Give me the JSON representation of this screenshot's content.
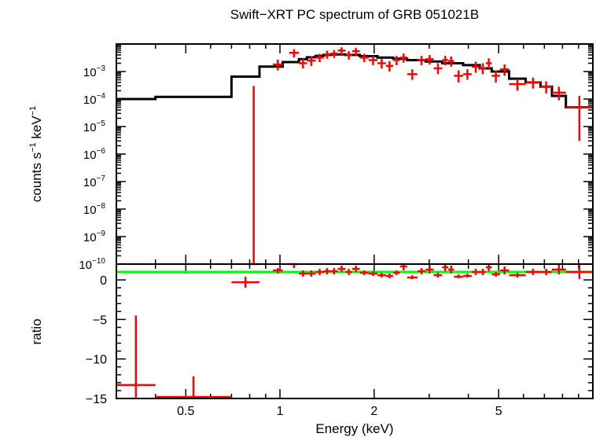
{
  "title": "Swift−XRT PC spectrum of GRB 051021B",
  "colors": {
    "data": "#ff0000",
    "model": "#000000",
    "unity": "#00ff00",
    "axes": "#000000"
  },
  "chart_data": [
    {
      "type": "scatter",
      "xscale": "log",
      "yscale": "log",
      "xlim": [
        0.3,
        10
      ],
      "ylim": [
        1e-10,
        0.01
      ],
      "ylabel_main": "counts s",
      "ylabel_sup1": "−1",
      "ylabel_mid": " keV",
      "ylabel_sup2": "−1",
      "yticks": [
        {
          "value": 1e-10,
          "base": "10",
          "exp": "−10"
        },
        {
          "value": 1e-09,
          "base": "10",
          "exp": "−9"
        },
        {
          "value": 1e-08,
          "base": "10",
          "exp": "−8"
        },
        {
          "value": 1e-07,
          "base": "10",
          "exp": "−7"
        },
        {
          "value": 1e-06,
          "base": "10",
          "exp": "−6"
        },
        {
          "value": 1e-05,
          "base": "10",
          "exp": "−5"
        },
        {
          "value": 0.0001,
          "base": "10",
          "exp": "−4"
        },
        {
          "value": 0.001,
          "base": "10",
          "exp": "−3"
        }
      ],
      "series": [
        {
          "kind": "data",
          "points": [
            {
              "x0": 0.79,
              "x1": 0.86,
              "y": 1e-10,
              "ylo": 1e-10,
              "yhi": 0.0003
            },
            {
              "x0": 0.95,
              "x1": 1.02,
              "y": 0.0018,
              "ylo": 0.0011,
              "yhi": 0.0027
            },
            {
              "x0": 1.07,
              "x1": 1.15,
              "y": 0.0048,
              "ylo": 0.0032,
              "yhi": 0.0065
            },
            {
              "x0": 1.15,
              "x1": 1.22,
              "y": 0.002,
              "ylo": 0.0013,
              "yhi": 0.003
            },
            {
              "x0": 1.22,
              "x1": 1.3,
              "y": 0.0025,
              "ylo": 0.0016,
              "yhi": 0.0036
            },
            {
              "x0": 1.3,
              "x1": 1.38,
              "y": 0.0032,
              "ylo": 0.0022,
              "yhi": 0.0044
            },
            {
              "x0": 1.38,
              "x1": 1.45,
              "y": 0.0042,
              "ylo": 0.0029,
              "yhi": 0.0057
            },
            {
              "x0": 1.45,
              "x1": 1.53,
              "y": 0.0045,
              "ylo": 0.0031,
              "yhi": 0.006
            },
            {
              "x0": 1.53,
              "x1": 1.62,
              "y": 0.0058,
              "ylo": 0.004,
              "yhi": 0.0076
            },
            {
              "x0": 1.62,
              "x1": 1.7,
              "y": 0.004,
              "ylo": 0.0027,
              "yhi": 0.0055
            },
            {
              "x0": 1.7,
              "x1": 1.8,
              "y": 0.0055,
              "ylo": 0.0038,
              "yhi": 0.0073
            },
            {
              "x0": 1.8,
              "x1": 1.92,
              "y": 0.0032,
              "ylo": 0.0022,
              "yhi": 0.0044
            },
            {
              "x0": 1.92,
              "x1": 2.05,
              "y": 0.0026,
              "ylo": 0.0017,
              "yhi": 0.0037
            },
            {
              "x0": 2.05,
              "x1": 2.18,
              "y": 0.002,
              "ylo": 0.0013,
              "yhi": 0.0029
            },
            {
              "x0": 2.18,
              "x1": 2.3,
              "y": 0.0016,
              "ylo": 0.001,
              "yhi": 0.0024
            },
            {
              "x0": 2.3,
              "x1": 2.42,
              "y": 0.0026,
              "ylo": 0.0017,
              "yhi": 0.0037
            },
            {
              "x0": 2.42,
              "x1": 2.55,
              "y": 0.0032,
              "ylo": 0.0021,
              "yhi": 0.0045
            },
            {
              "x0": 2.55,
              "x1": 2.75,
              "y": 0.0008,
              "ylo": 0.0005,
              "yhi": 0.0012
            },
            {
              "x0": 2.75,
              "x1": 2.92,
              "y": 0.0026,
              "ylo": 0.0017,
              "yhi": 0.0037
            },
            {
              "x0": 2.92,
              "x1": 3.1,
              "y": 0.0028,
              "ylo": 0.0018,
              "yhi": 0.004
            },
            {
              "x0": 3.1,
              "x1": 3.3,
              "y": 0.0013,
              "ylo": 0.0008,
              "yhi": 0.002
            },
            {
              "x0": 3.3,
              "x1": 3.45,
              "y": 0.0026,
              "ylo": 0.0017,
              "yhi": 0.0037
            },
            {
              "x0": 3.45,
              "x1": 3.6,
              "y": 0.0024,
              "ylo": 0.0015,
              "yhi": 0.0035
            },
            {
              "x0": 3.6,
              "x1": 3.85,
              "y": 0.0007,
              "ylo": 0.0004,
              "yhi": 0.0011
            },
            {
              "x0": 3.85,
              "x1": 4.1,
              "y": 0.0008,
              "ylo": 0.0005,
              "yhi": 0.0012
            },
            {
              "x0": 4.1,
              "x1": 4.35,
              "y": 0.0015,
              "ylo": 0.0009,
              "yhi": 0.0023
            },
            {
              "x0": 4.35,
              "x1": 4.55,
              "y": 0.0013,
              "ylo": 0.0008,
              "yhi": 0.002
            },
            {
              "x0": 4.55,
              "x1": 4.75,
              "y": 0.002,
              "ylo": 0.0013,
              "yhi": 0.003
            },
            {
              "x0": 4.75,
              "x1": 5.05,
              "y": 0.0007,
              "ylo": 0.0004,
              "yhi": 0.0011
            },
            {
              "x0": 5.05,
              "x1": 5.4,
              "y": 0.0012,
              "ylo": 0.0007,
              "yhi": 0.0018
            },
            {
              "x0": 5.4,
              "x1": 6.1,
              "y": 0.00035,
              "ylo": 0.0002,
              "yhi": 0.00055
            },
            {
              "x0": 6.1,
              "x1": 6.8,
              "y": 0.0004,
              "ylo": 0.00024,
              "yhi": 0.0006
            },
            {
              "x0": 6.8,
              "x1": 7.4,
              "y": 0.00028,
              "ylo": 0.00016,
              "yhi": 0.00044
            },
            {
              "x0": 7.4,
              "x1": 8.2,
              "y": 0.00017,
              "ylo": 9e-05,
              "yhi": 0.00028
            },
            {
              "x0": 8.2,
              "x1": 10.0,
              "y": 5e-05,
              "ylo": 3e-06,
              "yhi": 0.00013
            }
          ]
        },
        {
          "kind": "model",
          "steps": [
            {
              "x0": 0.3,
              "x1": 0.4,
              "y": 0.0001
            },
            {
              "x0": 0.4,
              "x1": 0.7,
              "y": 0.00012
            },
            {
              "x0": 0.7,
              "x1": 0.86,
              "y": 0.00065
            },
            {
              "x0": 0.86,
              "x1": 1.02,
              "y": 0.0015
            },
            {
              "x0": 1.02,
              "x1": 1.15,
              "y": 0.0022
            },
            {
              "x0": 1.15,
              "x1": 1.22,
              "y": 0.0028
            },
            {
              "x0": 1.22,
              "x1": 1.3,
              "y": 0.0033
            },
            {
              "x0": 1.3,
              "x1": 1.38,
              "y": 0.0037
            },
            {
              "x0": 1.38,
              "x1": 1.45,
              "y": 0.004
            },
            {
              "x0": 1.45,
              "x1": 1.62,
              "y": 0.0042
            },
            {
              "x0": 1.62,
              "x1": 1.8,
              "y": 0.004
            },
            {
              "x0": 1.8,
              "x1": 2.05,
              "y": 0.0036
            },
            {
              "x0": 2.05,
              "x1": 2.3,
              "y": 0.0032
            },
            {
              "x0": 2.3,
              "x1": 2.55,
              "y": 0.0029
            },
            {
              "x0": 2.55,
              "x1": 2.92,
              "y": 0.0026
            },
            {
              "x0": 2.92,
              "x1": 3.3,
              "y": 0.0023
            },
            {
              "x0": 3.3,
              "x1": 3.85,
              "y": 0.002
            },
            {
              "x0": 3.85,
              "x1": 4.35,
              "y": 0.0017
            },
            {
              "x0": 4.35,
              "x1": 4.75,
              "y": 0.0013
            },
            {
              "x0": 4.75,
              "x1": 5.4,
              "y": 0.001
            },
            {
              "x0": 5.4,
              "x1": 6.1,
              "y": 0.00055
            },
            {
              "x0": 6.1,
              "x1": 6.8,
              "y": 0.0004
            },
            {
              "x0": 6.8,
              "x1": 7.4,
              "y": 0.00028
            },
            {
              "x0": 7.4,
              "x1": 8.2,
              "y": 0.00013
            },
            {
              "x0": 8.2,
              "x1": 10.0,
              "y": 5e-05
            }
          ]
        }
      ]
    },
    {
      "type": "scatter",
      "xscale": "log",
      "xlim": [
        0.3,
        10
      ],
      "ylim": [
        -15,
        2
      ],
      "ylabel": "ratio",
      "xlabel": "Energy (keV)",
      "yticks": [
        {
          "value": 0,
          "label": "0"
        },
        {
          "value": -5,
          "label": "−5"
        },
        {
          "value": -10,
          "label": "−10"
        },
        {
          "value": -15,
          "label": "−15"
        }
      ],
      "xticks": [
        {
          "value": 0.5,
          "label": "0.5"
        },
        {
          "value": 1,
          "label": "1"
        },
        {
          "value": 2,
          "label": "2"
        },
        {
          "value": 5,
          "label": "5"
        }
      ],
      "unity_line": 1,
      "series": [
        {
          "kind": "data",
          "points": [
            {
              "x0": 0.3,
              "x1": 0.4,
              "y": -13.3,
              "ylo": -15.0,
              "yhi": -4.5
            },
            {
              "x0": 0.4,
              "x1": 0.7,
              "y": -14.8,
              "ylo": -15.0,
              "yhi": -12.2
            },
            {
              "x0": 0.7,
              "x1": 0.86,
              "y": -0.3,
              "ylo": -1.0,
              "yhi": 0.4
            },
            {
              "x0": 0.95,
              "x1": 1.02,
              "y": 1.2,
              "ylo": 0.8,
              "yhi": 1.5
            },
            {
              "x0": 1.07,
              "x1": 1.15,
              "y": 2.0,
              "ylo": 1.5,
              "yhi": 2.5
            },
            {
              "x0": 1.15,
              "x1": 1.22,
              "y": 0.8,
              "ylo": 0.4,
              "yhi": 1.2
            },
            {
              "x0": 1.22,
              "x1": 1.3,
              "y": 0.8,
              "ylo": 0.4,
              "yhi": 1.2
            },
            {
              "x0": 1.3,
              "x1": 1.38,
              "y": 1.0,
              "ylo": 0.6,
              "yhi": 1.4
            },
            {
              "x0": 1.38,
              "x1": 1.45,
              "y": 1.1,
              "ylo": 0.7,
              "yhi": 1.5
            },
            {
              "x0": 1.45,
              "x1": 1.53,
              "y": 1.1,
              "ylo": 0.7,
              "yhi": 1.5
            },
            {
              "x0": 1.53,
              "x1": 1.62,
              "y": 1.4,
              "ylo": 1.0,
              "yhi": 1.8
            },
            {
              "x0": 1.62,
              "x1": 1.7,
              "y": 1.0,
              "ylo": 0.6,
              "yhi": 1.4
            },
            {
              "x0": 1.7,
              "x1": 1.8,
              "y": 1.4,
              "ylo": 1.0,
              "yhi": 1.8
            },
            {
              "x0": 1.8,
              "x1": 1.92,
              "y": 0.9,
              "ylo": 0.6,
              "yhi": 1.2
            },
            {
              "x0": 1.92,
              "x1": 2.05,
              "y": 0.8,
              "ylo": 0.5,
              "yhi": 1.1
            },
            {
              "x0": 2.05,
              "x1": 2.18,
              "y": 0.6,
              "ylo": 0.3,
              "yhi": 0.9
            },
            {
              "x0": 2.18,
              "x1": 2.3,
              "y": 0.5,
              "ylo": 0.2,
              "yhi": 0.8
            },
            {
              "x0": 2.3,
              "x1": 2.42,
              "y": 0.9,
              "ylo": 0.6,
              "yhi": 1.2
            },
            {
              "x0": 2.42,
              "x1": 2.55,
              "y": 1.7,
              "ylo": 1.2,
              "yhi": 2.5
            },
            {
              "x0": 2.55,
              "x1": 2.75,
              "y": 0.3,
              "ylo": 0.1,
              "yhi": 0.6
            },
            {
              "x0": 2.75,
              "x1": 2.92,
              "y": 1.1,
              "ylo": 0.7,
              "yhi": 1.5
            },
            {
              "x0": 2.92,
              "x1": 3.1,
              "y": 1.3,
              "ylo": 0.8,
              "yhi": 1.8
            },
            {
              "x0": 3.1,
              "x1": 3.3,
              "y": 0.6,
              "ylo": 0.3,
              "yhi": 0.9
            },
            {
              "x0": 3.3,
              "x1": 3.45,
              "y": 1.6,
              "ylo": 1.1,
              "yhi": 2.1
            },
            {
              "x0": 3.45,
              "x1": 3.6,
              "y": 1.3,
              "ylo": 0.8,
              "yhi": 1.8
            },
            {
              "x0": 3.6,
              "x1": 3.85,
              "y": 0.4,
              "ylo": 0.2,
              "yhi": 0.7
            },
            {
              "x0": 3.85,
              "x1": 4.1,
              "y": 0.5,
              "ylo": 0.3,
              "yhi": 0.8
            },
            {
              "x0": 4.1,
              "x1": 4.35,
              "y": 1.0,
              "ylo": 0.6,
              "yhi": 1.4
            },
            {
              "x0": 4.35,
              "x1": 4.55,
              "y": 1.0,
              "ylo": 0.6,
              "yhi": 1.4
            },
            {
              "x0": 4.55,
              "x1": 4.75,
              "y": 1.6,
              "ylo": 1.1,
              "yhi": 2.5
            },
            {
              "x0": 4.75,
              "x1": 5.05,
              "y": 0.7,
              "ylo": 0.4,
              "yhi": 1.0
            },
            {
              "x0": 5.05,
              "x1": 5.4,
              "y": 1.2,
              "ylo": 0.7,
              "yhi": 1.7
            },
            {
              "x0": 5.4,
              "x1": 6.1,
              "y": 0.6,
              "ylo": 0.3,
              "yhi": 0.9
            },
            {
              "x0": 6.1,
              "x1": 6.8,
              "y": 1.0,
              "ylo": 0.6,
              "yhi": 1.4
            },
            {
              "x0": 6.8,
              "x1": 7.4,
              "y": 1.0,
              "ylo": 0.6,
              "yhi": 1.4
            },
            {
              "x0": 7.4,
              "x1": 8.2,
              "y": 1.3,
              "ylo": 0.7,
              "yhi": 1.9
            },
            {
              "x0": 8.2,
              "x1": 10.0,
              "y": 1.0,
              "ylo": 0.1,
              "yhi": 1.9
            }
          ]
        }
      ]
    }
  ]
}
